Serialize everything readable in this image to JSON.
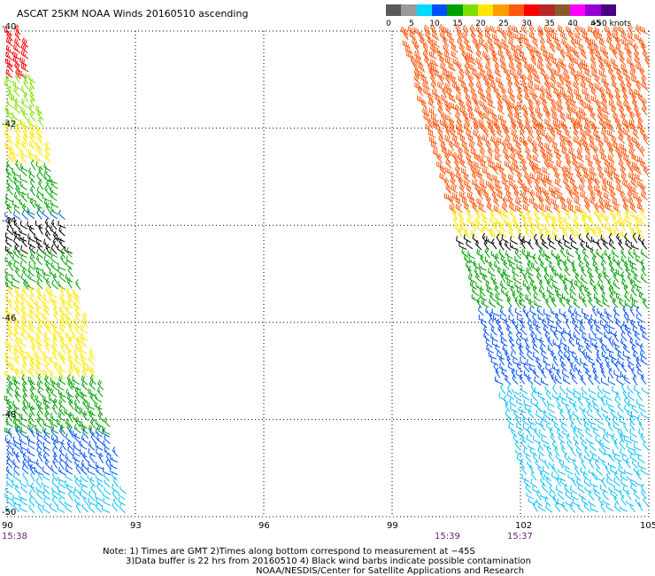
{
  "title": "ASCAT 25KM NOAA Winds 20160510 ascending",
  "legend": {
    "swatches": [
      {
        "color": "#5a5a5a"
      },
      {
        "color": "#9a9a9a"
      },
      {
        "color": "#00d8ff"
      },
      {
        "color": "#0050ff"
      },
      {
        "color": "#00a000"
      },
      {
        "color": "#7ee000"
      },
      {
        "color": "#ffe800"
      },
      {
        "color": "#ff9c00"
      },
      {
        "color": "#ff5a10"
      },
      {
        "color": "#ff0000"
      },
      {
        "color": "#b52828"
      },
      {
        "color": "#8b5a2b"
      },
      {
        "color": "#ff00ff"
      },
      {
        "color": "#9400d3"
      },
      {
        "color": "#4b0082"
      }
    ],
    "labels": [
      "0",
      "5",
      "10",
      "15",
      "20",
      "25",
      "30",
      "35",
      "40",
      "45",
      ">50 knots"
    ]
  },
  "axes": {
    "x_ticks": [
      "90",
      "93",
      "96",
      "99",
      "102",
      "105"
    ],
    "y_ticks": [
      "-40",
      "-42",
      "-44",
      "-46",
      "-48",
      "-50"
    ]
  },
  "times": [
    "15:38",
    "15:39",
    "15:37"
  ],
  "notes": [
    "Note: 1) Times are GMT 2)Times along bottom correspond to measurement at −45S",
    "3)Data buffer is 22 hrs from 20160510 4) Black wind barbs indicate possible contamination",
    "NOAA/NESDIS/Center for Satellite Applications and Research"
  ],
  "chart_data": {
    "type": "wind-barb",
    "xlim": [
      90,
      105
    ],
    "ylim": [
      -50,
      -40
    ],
    "grid": true,
    "color_scale_knots": [
      0,
      5,
      10,
      15,
      20,
      25,
      30,
      35,
      40,
      45,
      50
    ],
    "swaths": [
      {
        "lon_range_at_north": [
          90,
          90.4
        ],
        "lon_range_at_south": [
          90,
          92.9
        ],
        "bands": [
          {
            "lat": [
              -41.0,
              -40.0
            ],
            "speed_knots": 30,
            "color": "#ff0000"
          },
          {
            "lat": [
              -42.0,
              -41.0
            ],
            "speed_knots": 20,
            "color": "#7ee000"
          },
          {
            "lat": [
              -42.8,
              -42.0
            ],
            "speed_knots": 25,
            "color": "#ffe800"
          },
          {
            "lat": [
              -43.8,
              -42.8
            ],
            "speed_knots": 15,
            "color": "#00a000"
          },
          {
            "lat": [
              -44.0,
              -43.8
            ],
            "speed_knots": 10,
            "color": "#0050ff"
          },
          {
            "lat": [
              -44.6,
              -44.0
            ],
            "speed_knots": 15,
            "color": "#000000"
          },
          {
            "lat": [
              -45.4,
              -44.6
            ],
            "speed_knots": 15,
            "color": "#00a000"
          },
          {
            "lat": [
              -46.3,
              -45.4
            ],
            "speed_knots": 25,
            "color": "#ffe800"
          },
          {
            "lat": [
              -47.2,
              -46.3
            ],
            "speed_knots": 25,
            "color": "#ffe800"
          },
          {
            "lat": [
              -48.3,
              -47.2
            ],
            "speed_knots": 20,
            "color": "#00a000"
          },
          {
            "lat": [
              -49.2,
              -48.3
            ],
            "speed_knots": 15,
            "color": "#0050ff"
          },
          {
            "lat": [
              -50.0,
              -49.2
            ],
            "speed_knots": 10,
            "color": "#00bfff"
          }
        ],
        "time": "15:38"
      },
      {
        "lon_range_at_north": [
          99.2,
          105
        ],
        "lon_range_at_south": [
          102.3,
          105
        ],
        "bands": [
          {
            "lat": [
              -42.0,
              -40.0
            ],
            "speed_knots": 35,
            "color": "#ff5a10"
          },
          {
            "lat": [
              -43.8,
              -42.0
            ],
            "speed_knots": 33,
            "color": "#ff5a10"
          },
          {
            "lat": [
              -44.3,
              -43.8
            ],
            "speed_knots": 25,
            "color": "#ffe800"
          },
          {
            "lat": [
              -44.6,
              -44.3
            ],
            "speed_knots": 15,
            "color": "#000000"
          },
          {
            "lat": [
              -45.8,
              -44.6
            ],
            "speed_knots": 18,
            "color": "#00a000"
          },
          {
            "lat": [
              -47.4,
              -45.8
            ],
            "speed_knots": 15,
            "color": "#0050ff"
          },
          {
            "lat": [
              -50.0,
              -47.4
            ],
            "speed_knots": 10,
            "color": "#00bfff"
          }
        ],
        "times": [
          "15:39",
          "15:37"
        ]
      }
    ]
  }
}
